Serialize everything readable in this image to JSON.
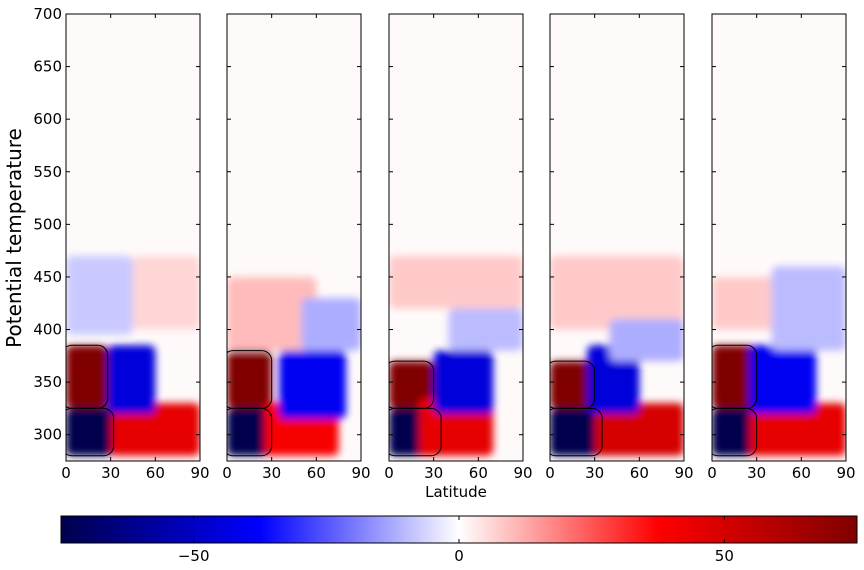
{
  "chart_data": {
    "type": "heatmap",
    "xlabel": "Latitude",
    "ylabel": "Potential temperature",
    "panel_count": 5,
    "x_ticks": [
      "0",
      "30",
      "60",
      "90"
    ],
    "xlim": [
      0,
      90
    ],
    "y_ticks": [
      "300",
      "350",
      "400",
      "450",
      "500",
      "550",
      "600",
      "650",
      "700"
    ],
    "ylim": [
      275,
      700
    ],
    "colorbar": {
      "colormap": "seismic",
      "range": [
        -75,
        75
      ],
      "ticks": [
        "−50",
        "0",
        "50"
      ],
      "tick_values": [
        -50,
        0,
        50
      ],
      "colors": [
        "#00004d",
        "#0000ff",
        "#ffffff",
        "#ff0000",
        "#800000"
      ]
    },
    "panels": [
      {
        "features": [
          {
            "type": "dark_blue",
            "lat": [
              0,
              32
            ],
            "theta": [
              280,
              325
            ],
            "value": -75
          },
          {
            "type": "dark_red",
            "lat": [
              0,
              28
            ],
            "theta": [
              325,
              385
            ],
            "value": 75
          },
          {
            "type": "red",
            "lat": [
              30,
              90
            ],
            "theta": [
              280,
              330
            ],
            "value": 45
          },
          {
            "type": "blue",
            "lat": [
              28,
              60
            ],
            "theta": [
              320,
              385
            ],
            "value": -45
          },
          {
            "type": "light_blue",
            "lat": [
              0,
              45
            ],
            "theta": [
              395,
              470
            ],
            "value": -8
          },
          {
            "type": "light_red",
            "lat": [
              45,
              90
            ],
            "theta": [
              400,
              470
            ],
            "value": 6
          }
        ]
      },
      {
        "features": [
          {
            "type": "dark_blue",
            "lat": [
              0,
              30
            ],
            "theta": [
              280,
              325
            ],
            "value": -75
          },
          {
            "type": "dark_red",
            "lat": [
              0,
              30
            ],
            "theta": [
              325,
              380
            ],
            "value": 75
          },
          {
            "type": "red",
            "lat": [
              25,
              75
            ],
            "theta": [
              280,
              330
            ],
            "value": 40
          },
          {
            "type": "blue",
            "lat": [
              35,
              80
            ],
            "theta": [
              315,
              380
            ],
            "value": -40
          },
          {
            "type": "light_red",
            "lat": [
              0,
              60
            ],
            "theta": [
              380,
              450
            ],
            "value": 10
          },
          {
            "type": "light_blue",
            "lat": [
              50,
              90
            ],
            "theta": [
              380,
              430
            ],
            "value": -12
          }
        ]
      },
      {
        "features": [
          {
            "type": "dark_blue",
            "lat": [
              0,
              35
            ],
            "theta": [
              280,
              325
            ],
            "value": -75
          },
          {
            "type": "dark_red",
            "lat": [
              0,
              30
            ],
            "theta": [
              325,
              370
            ],
            "value": 75
          },
          {
            "type": "red",
            "lat": [
              20,
              70
            ],
            "theta": [
              280,
              335
            ],
            "value": 45
          },
          {
            "type": "blue",
            "lat": [
              30,
              70
            ],
            "theta": [
              320,
              380
            ],
            "value": -45
          },
          {
            "type": "light_red",
            "lat": [
              0,
              90
            ],
            "theta": [
              420,
              470
            ],
            "value": 8
          },
          {
            "type": "light_blue",
            "lat": [
              40,
              90
            ],
            "theta": [
              380,
              420
            ],
            "value": -10
          }
        ]
      },
      {
        "features": [
          {
            "type": "dark_blue",
            "lat": [
              0,
              35
            ],
            "theta": [
              280,
              325
            ],
            "value": -75
          },
          {
            "type": "dark_red",
            "lat": [
              0,
              30
            ],
            "theta": [
              325,
              370
            ],
            "value": 75
          },
          {
            "type": "red",
            "lat": [
              30,
              90
            ],
            "theta": [
              280,
              330
            ],
            "value": 50
          },
          {
            "type": "blue",
            "lat": [
              25,
              60
            ],
            "theta": [
              320,
              385
            ],
            "value": -45
          },
          {
            "type": "light_red",
            "lat": [
              0,
              90
            ],
            "theta": [
              400,
              470
            ],
            "value": 8
          },
          {
            "type": "light_blue",
            "lat": [
              40,
              90
            ],
            "theta": [
              370,
              410
            ],
            "value": -12
          }
        ]
      },
      {
        "features": [
          {
            "type": "dark_blue",
            "lat": [
              0,
              30
            ],
            "theta": [
              280,
              325
            ],
            "value": -75
          },
          {
            "type": "dark_red",
            "lat": [
              0,
              30
            ],
            "theta": [
              325,
              385
            ],
            "value": 75
          },
          {
            "type": "red",
            "lat": [
              25,
              90
            ],
            "theta": [
              280,
              330
            ],
            "value": 45
          },
          {
            "type": "blue",
            "lat": [
              25,
              70
            ],
            "theta": [
              320,
              385
            ],
            "value": -40
          },
          {
            "type": "light_red",
            "lat": [
              0,
              70
            ],
            "theta": [
              400,
              450
            ],
            "value": 8
          },
          {
            "type": "light_blue",
            "lat": [
              40,
              90
            ],
            "theta": [
              380,
              460
            ],
            "value": -10
          }
        ]
      }
    ]
  }
}
